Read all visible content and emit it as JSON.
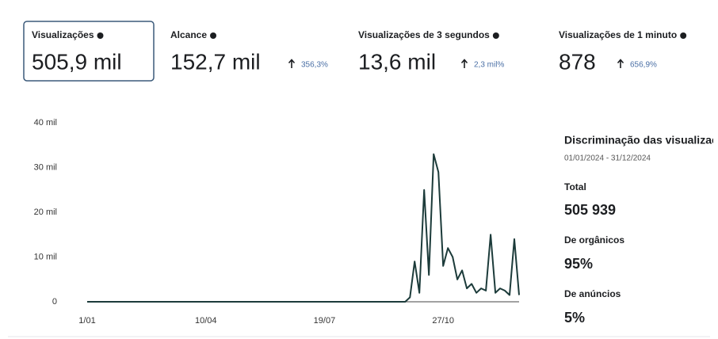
{
  "metrics": [
    {
      "label": "Visualizações",
      "value": "505,9 mil"
    },
    {
      "label": "Alcance",
      "value": "152,7 mil",
      "change": "356,3%"
    },
    {
      "label": "Visualizações de 3 segundos",
      "value": "13,6 mil",
      "change": "2,3 mil%"
    },
    {
      "label": "Visualizações de 1 minuto",
      "value": "878",
      "change": "656,9%"
    }
  ],
  "chart_data": {
    "type": "line",
    "color": "#1c3b3a",
    "grid": false,
    "categories": [
      "1/01",
      null,
      null,
      null,
      null,
      null,
      null,
      null,
      null,
      null,
      null,
      null,
      null,
      null,
      null,
      null,
      null,
      null,
      null,
      null,
      null,
      null,
      null,
      null,
      null,
      "10/04",
      null,
      null,
      null,
      null,
      null,
      null,
      null,
      null,
      null,
      null,
      null,
      null,
      null,
      null,
      null,
      null,
      null,
      null,
      null,
      null,
      null,
      null,
      null,
      null,
      "19/07",
      null,
      null,
      null,
      null,
      null,
      null,
      null,
      null,
      null,
      null,
      null,
      null,
      null,
      null,
      null,
      null,
      null,
      null,
      null,
      null,
      null,
      null,
      null,
      null,
      "27/10",
      null,
      null,
      null,
      null,
      null,
      null,
      null,
      null,
      null,
      null,
      null,
      null,
      null,
      null,
      null,
      null
    ],
    "values": [
      0,
      0,
      0,
      0,
      0,
      0,
      0,
      0,
      0,
      0,
      0,
      0,
      0,
      0,
      0,
      0,
      0,
      0,
      0,
      0,
      0,
      0,
      0,
      0,
      0,
      0,
      0,
      0,
      0,
      0,
      0,
      0,
      0,
      0,
      0,
      0,
      0,
      0,
      0,
      0,
      0,
      0,
      0,
      0,
      0,
      0,
      0,
      0,
      0,
      0,
      0,
      0,
      0,
      0,
      0,
      0,
      0,
      0,
      0,
      0,
      0,
      0,
      0,
      0,
      0,
      0,
      0,
      0,
      1000,
      9000,
      2000,
      25000,
      6000,
      33000,
      29000,
      8000,
      12000,
      10000,
      5000,
      7000,
      3000,
      4000,
      2000,
      3000,
      2500,
      15000,
      2000,
      3000,
      2500,
      1500,
      14000,
      1500
    ],
    "ylim": [
      0,
      40000
    ],
    "yticks": [
      0,
      {
        "value": 10000,
        "label": "10 mil"
      },
      {
        "value": 20000,
        "label": "20 mil"
      },
      {
        "value": 30000,
        "label": "30 mil"
      },
      {
        "value": 40000,
        "label": "40 mil"
      }
    ]
  },
  "breakdown": {
    "title": "Discriminação das visualizações",
    "date_range": "01/01/2024 - 31/12/2024",
    "items": [
      {
        "label": "Total",
        "value": "505 939"
      },
      {
        "label": "De orgânicos",
        "value": "95%"
      },
      {
        "label": "De anúncios",
        "value": "5%"
      }
    ]
  }
}
